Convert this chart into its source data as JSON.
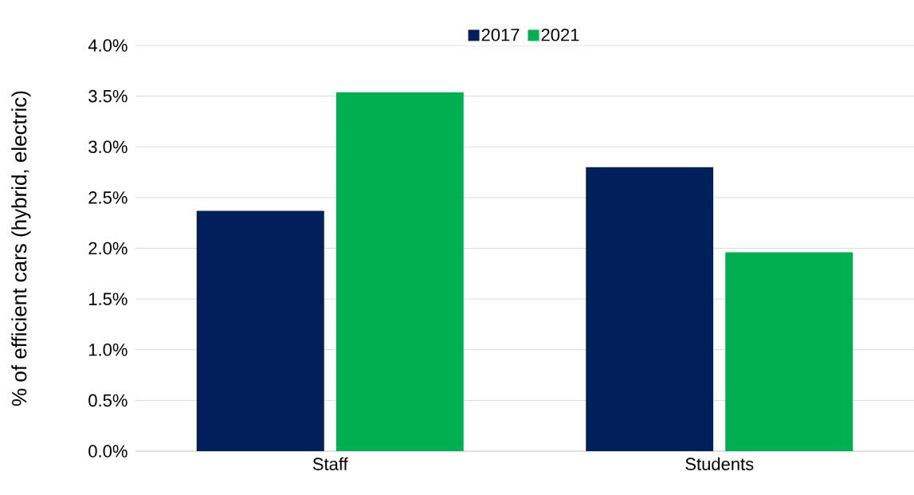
{
  "chart_data": {
    "type": "bar",
    "ylabel": "% of efficient cars (hybrid, electric)",
    "categories": [
      "Staff",
      "Students"
    ],
    "series": [
      {
        "name": "2017",
        "color": "#001f5b",
        "values": [
          2.37,
          2.8
        ]
      },
      {
        "name": "2021",
        "color": "#00b050",
        "values": [
          3.54,
          1.96
        ]
      }
    ],
    "ylim": [
      0,
      4
    ],
    "yticks": [
      {
        "value": 0,
        "label": "0.0%"
      },
      {
        "value": 0.5,
        "label": "0.5%"
      },
      {
        "value": 1,
        "label": "1.0%"
      },
      {
        "value": 1.5,
        "label": "1.5%"
      },
      {
        "value": 2,
        "label": "2.0%"
      },
      {
        "value": 2.5,
        "label": "2.5%"
      },
      {
        "value": 3,
        "label": "3.0%"
      },
      {
        "value": 3.5,
        "label": "3.5%"
      },
      {
        "value": 4,
        "label": "4.0%"
      }
    ],
    "grid": "y",
    "legend": "top"
  }
}
